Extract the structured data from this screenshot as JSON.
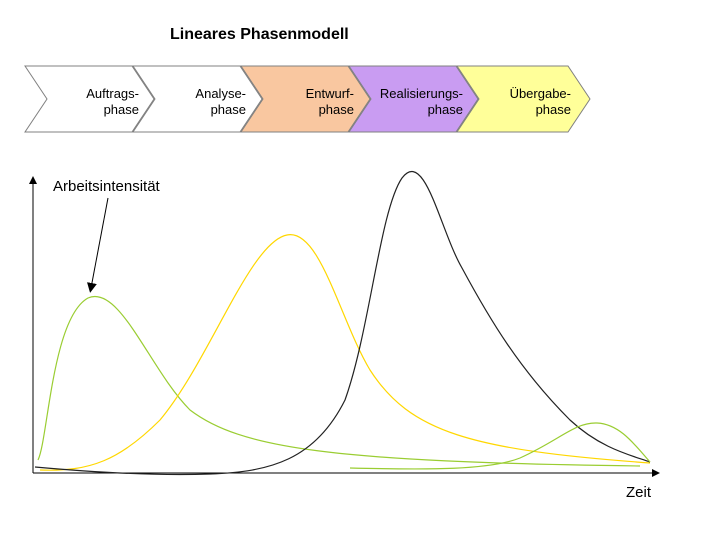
{
  "title": "Lineares Phasenmodell",
  "phases": [
    {
      "line1": "Auftrags-",
      "line2": "phase",
      "color": "#ffffff"
    },
    {
      "line1": "Analyse-",
      "line2": "phase",
      "color": "#ffffff"
    },
    {
      "line1": "Entwurf-",
      "line2": "phase",
      "color": "#f9c7a0"
    },
    {
      "line1": "Realisierungs-",
      "line2": "phase",
      "color": "#c99cf2"
    },
    {
      "line1": "Übergabe-",
      "line2": "phase",
      "color": "#ffff99"
    }
  ],
  "annotation": "Arbeitsintensität",
  "xaxis_label": "Zeit",
  "curve_colors": {
    "auftrag": "#9acd32",
    "analyse": "#ffd700",
    "realisierung": "#222222",
    "uebergabe": "#9acd32"
  }
}
